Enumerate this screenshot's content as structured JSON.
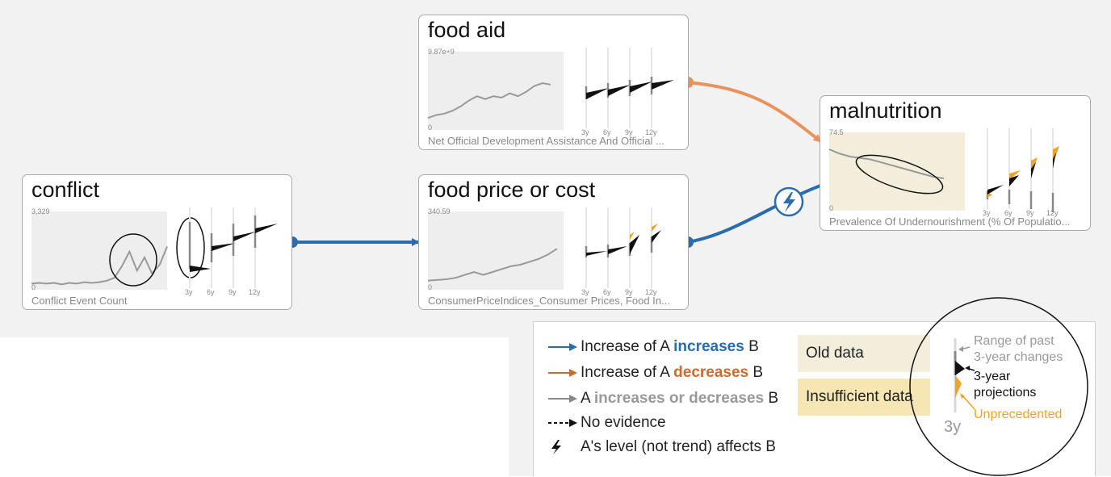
{
  "nodes": {
    "food_aid": {
      "title": "food aid",
      "ymax": "9.87e+9",
      "ymin": "0",
      "subtitle": "Net Official Development Assistance And Official ...",
      "horizons": [
        "3y",
        "6y",
        "9y",
        "12y"
      ],
      "series": [
        0.12,
        0.16,
        0.18,
        0.22,
        0.28,
        0.36,
        0.42,
        0.38,
        0.42,
        0.4,
        0.46,
        0.42,
        0.48,
        0.56,
        0.6,
        0.58
      ]
    },
    "malnutrition": {
      "title": "malnutrition",
      "ymax": "74.5",
      "ymin": "0",
      "subtitle": "Prevalence Of Undernourishment (% Of Populatio...",
      "horizons": [
        "3y",
        "6y",
        "9y",
        "12y"
      ],
      "series": [
        0.8,
        0.74,
        0.7,
        0.68,
        0.66,
        0.62,
        0.58,
        0.54,
        0.5,
        0.46,
        0.42,
        0.4
      ]
    },
    "conflict": {
      "title": "conflict",
      "ymax": "3,329",
      "ymin": "0",
      "subtitle": "Conflict Event Count",
      "horizons": [
        "3y",
        "6y",
        "9y",
        "12y"
      ],
      "series": [
        0.04,
        0.05,
        0.04,
        0.05,
        0.03,
        0.05,
        0.04,
        0.06,
        0.05,
        0.06,
        0.08,
        0.12,
        0.28,
        0.48,
        0.22,
        0.4,
        0.18,
        0.3,
        0.55
      ]
    },
    "food_price": {
      "title": "food price or cost",
      "ymax": "340.59",
      "ymin": "0",
      "subtitle": "ConsumerPriceIndices_Consumer Prices, Food In...",
      "horizons": [
        "3y",
        "6y",
        "9y",
        "12y"
      ],
      "series": [
        0.08,
        0.09,
        0.1,
        0.12,
        0.16,
        0.2,
        0.16,
        0.2,
        0.24,
        0.28,
        0.3,
        0.34,
        0.38,
        0.44,
        0.52
      ]
    }
  },
  "legend": {
    "increase": {
      "prefix": "Increase of A ",
      "highlight": "increases",
      "suffix": " B"
    },
    "decrease": {
      "prefix": "Increase of A ",
      "highlight": "decreases",
      "suffix": " B"
    },
    "either": {
      "prefix": "A ",
      "highlight": "increases or decreases",
      "suffix": " B"
    },
    "no_evidence": "No evidence",
    "level": "A's level (not trend) affects B",
    "old_data": "Old data",
    "insufficient_data": "Insufficient data",
    "range_past_line1": "Range of past",
    "range_past_line2": "3-year changes",
    "projections_line1": "3-year",
    "projections_line2": "projections",
    "unprecedented": "Unprecedented",
    "horizon": "3y"
  },
  "colors": {
    "increase": "#2a6cad",
    "decrease": "#e8935e",
    "either": "#888888",
    "unprecedented": "#f2a12a",
    "old_data": "#f3eedc",
    "insufficient_data": "#f5e6b3"
  }
}
